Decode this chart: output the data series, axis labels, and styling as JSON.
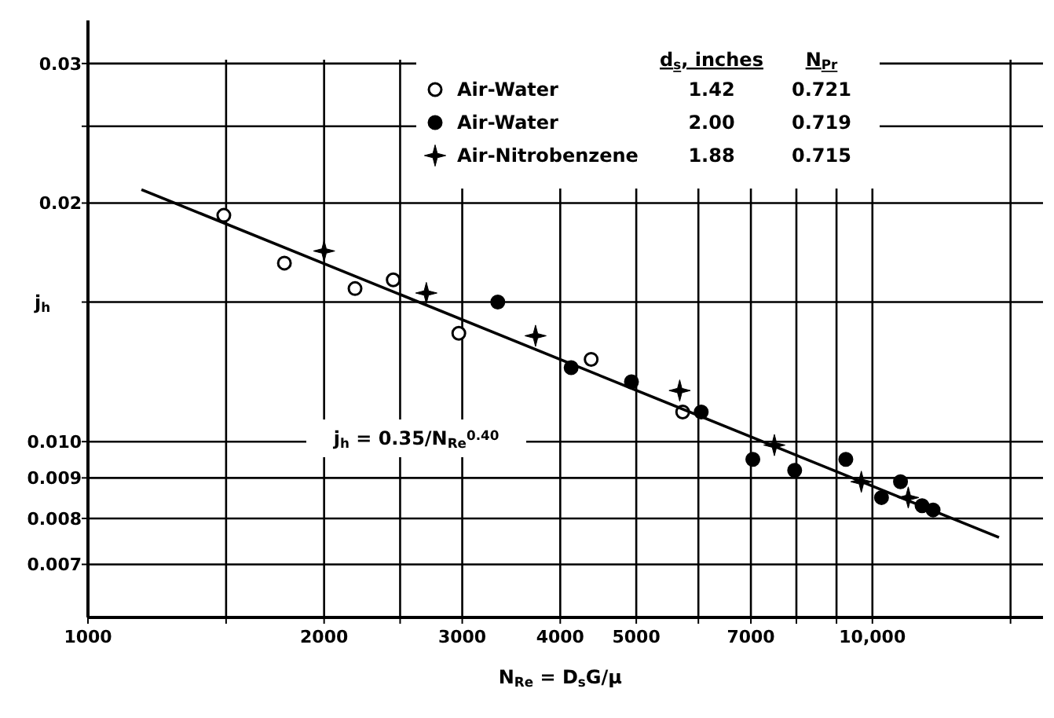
{
  "chart_data": {
    "type": "scatter",
    "xlabel": "N$_{Re}$ = D$_{s}$G/μ",
    "ylabel": "j$_{h}$",
    "log": "xy",
    "grid": true,
    "legend": "top",
    "xlim": [
      1000,
      16500
    ],
    "ylim": [
      0.006,
      0.034
    ],
    "xticks": [
      1000,
      {
        "value": 1500,
        "label": null
      },
      2000,
      {
        "value": 2500,
        "label": null
      },
      3000,
      4000,
      5000,
      {
        "value": 6000,
        "label": null
      },
      7000,
      {
        "value": 8000,
        "label": null
      },
      {
        "value": 9000,
        "label": null
      },
      {
        "value": 10000,
        "label": "10,000"
      },
      {
        "value": 15000,
        "label": null
      }
    ],
    "yticks": [
      {
        "value": 0.007,
        "label": "0.007"
      },
      {
        "value": 0.008,
        "label": "0.008"
      },
      {
        "value": 0.009,
        "label": "0.009"
      },
      {
        "value": 0.01,
        "label": "0.010"
      },
      {
        "value": 0.015,
        "label": null
      },
      {
        "value": 0.02,
        "label": "0.02"
      },
      {
        "value": 0.025,
        "label": null
      },
      {
        "value": 0.03,
        "label": "0.03"
      }
    ],
    "series": [
      {
        "name": "Air-Water",
        "color": "#ffffff",
        "marker": "circle",
        "x": [
          1490,
          1780,
          2190,
          2450,
          2970,
          4380,
          5730
        ],
        "values": [
          0.0193,
          0.0168,
          0.0156,
          0.016,
          0.0137,
          0.0127,
          0.0109
        ]
      },
      {
        "name": "Air-Water",
        "color": "#000000",
        "marker": "circle",
        "x": [
          3330,
          4130,
          4930,
          6050,
          7040,
          7960,
          9250,
          10270,
          10860,
          11570,
          11950
        ],
        "values": [
          0.015,
          0.0124,
          0.0119,
          0.0109,
          0.0095,
          0.0092,
          0.0095,
          0.0085,
          0.0089,
          0.0083,
          0.0082
        ]
      },
      {
        "name": "Air-Nitrobenzene",
        "color": "#000000",
        "marker": "star",
        "x": [
          2000,
          2700,
          3720,
          5680,
          7500,
          9680,
          11110
        ],
        "values": [
          0.0174,
          0.0154,
          0.0136,
          0.0116,
          0.0099,
          0.0089,
          0.0085
        ]
      },
      {
        "type": "line",
        "color": "#000000",
        "line_style": "solid",
        "x": [
          1170,
          14500
        ],
        "values": [
          0.0208,
          0.00757
        ]
      }
    ],
    "annotations": [
      "d$_{s}$, inches",
      "N$_{Pr}$",
      "1.42",
      "0.721",
      "2.00",
      "0.719",
      "1.88",
      "0.715",
      "j$_{h}$ = 0.35/N$_{Re}$$^{0.40}$"
    ]
  }
}
